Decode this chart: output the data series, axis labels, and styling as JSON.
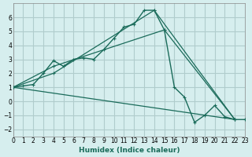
{
  "xlabel": "Humidex (Indice chaleur)",
  "bg_color": "#d6eeee",
  "grid_color": "#b0cccc",
  "line_color": "#1a6b5a",
  "xlim": [
    0,
    23
  ],
  "ylim": [
    -2.5,
    7
  ],
  "yticks": [
    -2,
    -1,
    0,
    1,
    2,
    3,
    4,
    5,
    6
  ],
  "xticks": [
    0,
    1,
    2,
    3,
    4,
    5,
    6,
    7,
    8,
    9,
    10,
    11,
    12,
    13,
    14,
    15,
    16,
    17,
    18,
    19,
    20,
    21,
    22,
    23
  ],
  "series1_x": [
    0,
    1,
    2,
    3,
    4,
    5,
    6,
    7,
    8,
    9,
    10,
    11,
    12,
    13,
    14,
    15,
    16,
    17,
    18,
    19,
    20,
    21,
    22,
    23
  ],
  "series1_y": [
    1.0,
    1.1,
    1.2,
    2.0,
    2.9,
    2.5,
    3.0,
    3.1,
    3.0,
    3.7,
    4.5,
    5.3,
    5.5,
    6.5,
    6.5,
    5.1,
    1.0,
    0.3,
    -1.5,
    -1.0,
    -0.3,
    -1.1,
    -1.3,
    -1.3
  ],
  "series2_x": [
    0,
    4,
    14,
    22
  ],
  "series2_y": [
    1.0,
    2.0,
    6.5,
    -1.3
  ],
  "series3_x": [
    0,
    4,
    15,
    22
  ],
  "series3_y": [
    1.0,
    2.5,
    5.1,
    -1.3
  ],
  "series4_x": [
    0,
    22
  ],
  "series4_y": [
    1.0,
    -1.3
  ]
}
